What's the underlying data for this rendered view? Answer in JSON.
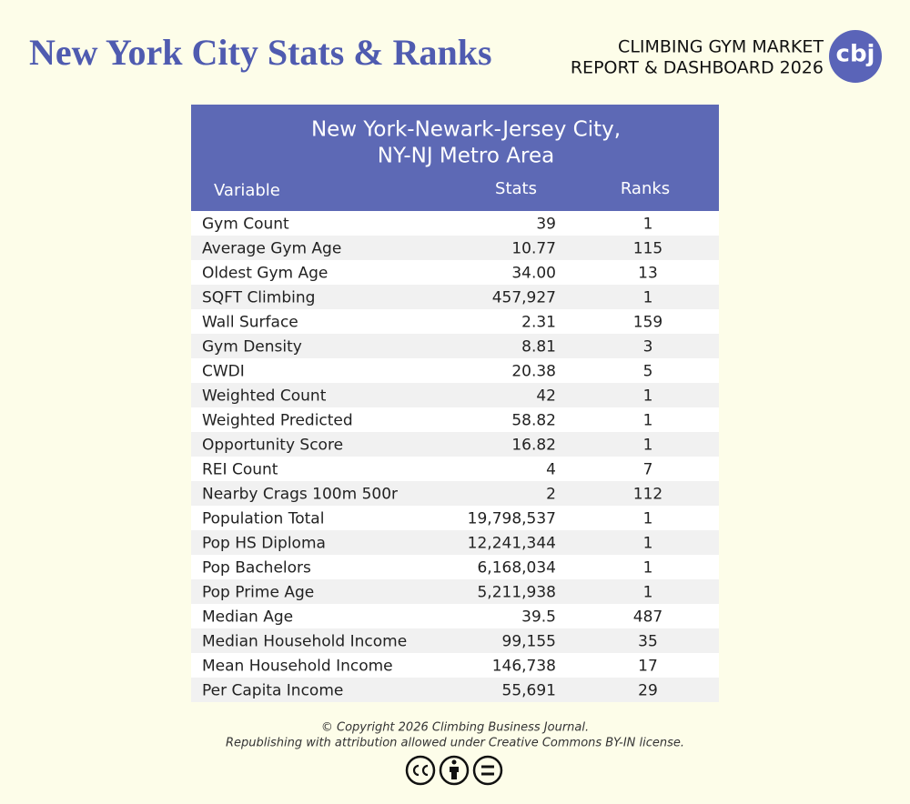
{
  "header": {
    "title": "New York City Stats & Ranks",
    "brand_lines": [
      "CLIMBING GYM MARKET",
      "REPORT & DASHBOARD 2026"
    ],
    "logo": "cbj"
  },
  "table": {
    "title_lines": [
      "New York-Newark-Jersey City,",
      "NY-NJ Metro Area"
    ],
    "columns": [
      "Variable",
      "Stats",
      "Ranks"
    ],
    "rows": [
      [
        "Gym Count",
        "39",
        1
      ],
      [
        "Average Gym Age",
        "10.77",
        115
      ],
      [
        "Oldest Gym Age",
        "34.00",
        13
      ],
      [
        "SQFT Climbing",
        "457,927",
        1
      ],
      [
        "Wall Surface",
        "2.31",
        159
      ],
      [
        "Gym Density",
        "8.81",
        3
      ],
      [
        "CWDI",
        "20.38",
        5
      ],
      [
        "Weighted Count",
        "42",
        1
      ],
      [
        "Weighted Predicted",
        "58.82",
        1
      ],
      [
        "Opportunity Score",
        "16.82",
        1
      ],
      [
        "REI Count",
        "4",
        7
      ],
      [
        "Nearby Crags 100m 500r",
        "2",
        112
      ],
      [
        "Population Total",
        "19,798,537",
        1
      ],
      [
        "Pop HS Diploma",
        "12,241,344",
        1
      ],
      [
        "Pop Bachelors",
        "6,168,034",
        1
      ],
      [
        "Pop Prime Age",
        "5,211,938",
        1
      ],
      [
        "Median Age",
        "39.5",
        487
      ],
      [
        "Median Household Income",
        "99,155",
        35
      ],
      [
        "Mean Household Income",
        "146,738",
        17
      ],
      [
        "Per Capita Income",
        "55,691",
        29
      ]
    ]
  },
  "footer": {
    "lines": [
      "© Copyright 2026 Climbing Business Journal.",
      "Republishing with attribution allowed under Creative Commons BY-IN license."
    ]
  }
}
